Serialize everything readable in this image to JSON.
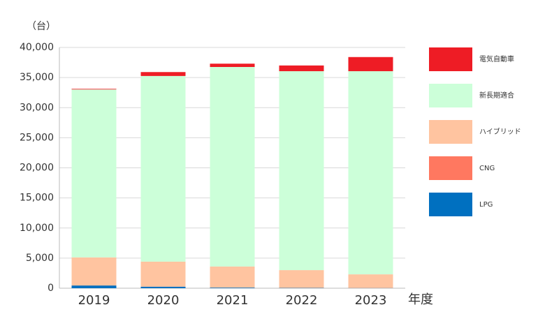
{
  "chart_data": {
    "type": "stacked-bar",
    "y_unit": "（台）",
    "x_label": "年度",
    "categories": [
      "2019",
      "2020",
      "2021",
      "2022",
      "2023"
    ],
    "series": [
      {
        "name": "LPG",
        "color": "#0070c0",
        "values": [
          450,
          250,
          100,
          50,
          30
        ]
      },
      {
        "name": "CNG",
        "color": "#ff7860",
        "values": [
          20,
          10,
          5,
          5,
          5
        ]
      },
      {
        "name": "ハイブリッド",
        "color": "#ffc4a0",
        "values": [
          4650,
          4150,
          3500,
          2950,
          2270
        ]
      },
      {
        "name": "新長期適合",
        "color": "#ccffd9",
        "values": [
          27900,
          30850,
          33150,
          33050,
          33750
        ]
      },
      {
        "name": "電気自動車",
        "color": "#ee1c25",
        "values": [
          100,
          650,
          550,
          950,
          2350
        ]
      }
    ],
    "ylim": [
      0,
      40000
    ],
    "yticks": [
      0,
      {
        "value": 5000,
        "label": "5,000"
      },
      {
        "value": 10000,
        "label": "10,000"
      },
      {
        "value": 15000,
        "label": "15,000"
      },
      {
        "value": 20000,
        "label": "20,000"
      },
      {
        "value": 25000,
        "label": "25,000"
      },
      {
        "value": 30000,
        "label": "30,000"
      },
      {
        "value": 35000,
        "label": "35,000"
      },
      {
        "value": 40000,
        "label": "40,000"
      }
    ],
    "grid": true
  }
}
